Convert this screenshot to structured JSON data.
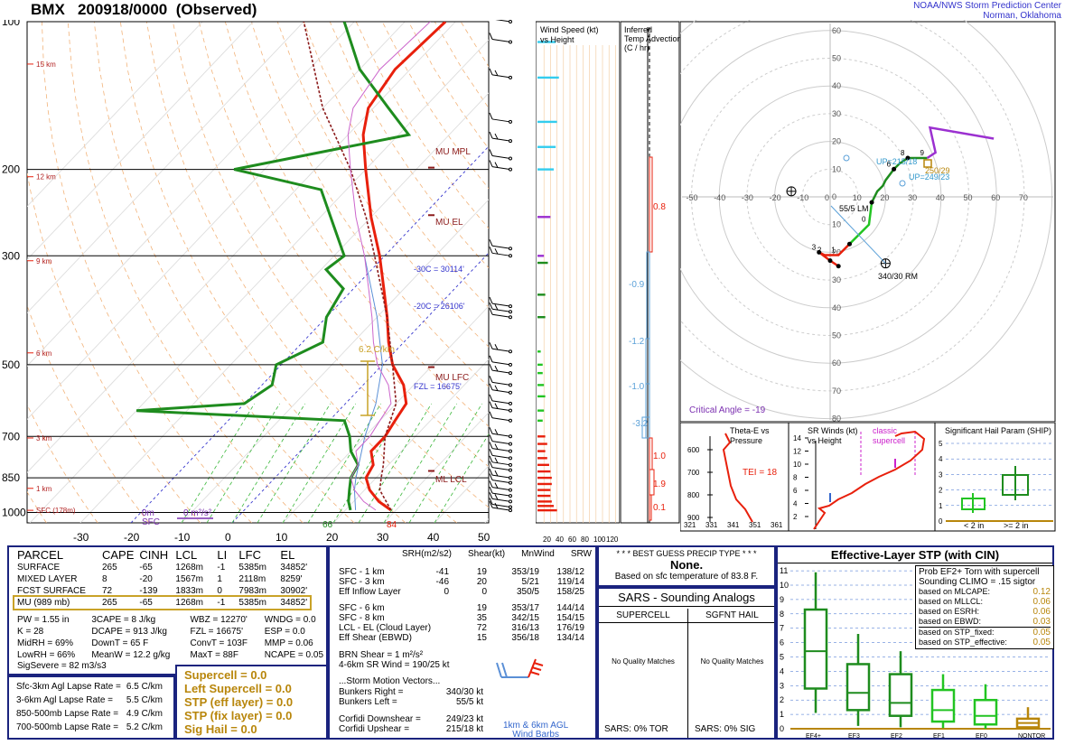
{
  "header": {
    "station": "BMX",
    "datetime": "200918/0000",
    "status": "(Observed)",
    "org_line1": "NOAA/NWS Storm Prediction Center",
    "org_line2": "Norman, Oklahoma"
  },
  "chart_data": [
    {
      "type": "line",
      "name_ref": "skewt",
      "pressure_levels": [
        100,
        200,
        300,
        500,
        700,
        850,
        1000
      ],
      "temp_ticks": [
        -30,
        -20,
        -10,
        0,
        10,
        20,
        30,
        40,
        50
      ],
      "height_labels": [
        "15 km",
        "12 km",
        "9 km",
        "6 km",
        "3 km",
        "1 km",
        "SFC (178m)"
      ],
      "height_pressures": [
        122,
        207,
        307,
        473,
        705,
        893,
        990
      ],
      "series": [
        {
          "kind": "temperature",
          "color": "#e8200c",
          "p": [
            989,
            950,
            900,
            850,
            800,
            750,
            700,
            650,
            600,
            550,
            500,
            450,
            400,
            350,
            300,
            250,
            200,
            170,
            150,
            125,
            100
          ],
          "t": [
            29,
            25,
            21,
            18,
            17,
            14,
            14,
            13,
            12,
            8,
            2,
            -3,
            -8,
            -14,
            -21,
            -30,
            -40,
            -47,
            -51,
            -53,
            -52
          ]
        },
        {
          "kind": "dewpoint",
          "color": "#1e8c1e",
          "p": [
            989,
            950,
            900,
            850,
            800,
            750,
            700,
            650,
            620,
            600,
            550,
            500,
            450,
            400,
            350,
            320,
            300,
            250,
            220,
            200,
            170,
            150,
            125,
            100
          ],
          "t": [
            21,
            19,
            17,
            15,
            14,
            10,
            7,
            3,
            -40,
            -20,
            -18,
            -21,
            -16,
            -20,
            -22,
            -29,
            -28,
            -38,
            -45,
            -66,
            -38,
            -47,
            -60,
            -72
          ]
        },
        {
          "kind": "parcel",
          "color": "#8b1a1a",
          "p": [
            989,
            900,
            850,
            800,
            700,
            600,
            500,
            400,
            300,
            250,
            200,
            150,
            100
          ],
          "t": [
            29,
            23,
            21,
            19,
            14,
            10,
            2,
            -8,
            -22,
            -31,
            -43,
            -60,
            -80
          ]
        },
        {
          "kind": "virtual",
          "color": "#5a8fd6",
          "p": [
            989,
            900,
            850,
            700,
            600,
            500,
            400,
            300
          ],
          "t": [
            22,
            18,
            16,
            10,
            6,
            0,
            -10,
            -24
          ]
        }
      ],
      "labels": {
        "mu_mpl": "MU MPL",
        "mu_el": "MU EL",
        "mu_lfc": "MU LFC",
        "ml_lcl": "ML LCL",
        "minus30": "-30C = 30114'",
        "minus20": "-20C = 26106'",
        "fzl": "FZL = 16675'",
        "lapse": "6.2 C/km",
        "sfc_t": "84",
        "sfc_td": "66",
        "mflux_a": "0m",
        "mflux_b": "SFC",
        "mflux_c": "0 m²/s²"
      }
    },
    {
      "type": "bar",
      "name_ref": "wind-speed",
      "title1": "Wind Speed (kt)",
      "title2": "vs Height",
      "xticks": [
        "20",
        "40",
        "60",
        "80",
        "100",
        "120"
      ],
      "pressures": [
        990,
        970,
        950,
        925,
        900,
        875,
        850,
        825,
        800,
        775,
        750,
        725,
        700,
        650,
        620,
        580,
        550,
        520,
        500,
        470,
        400,
        360,
        310,
        300,
        250,
        200,
        180,
        160,
        130,
        110
      ],
      "speeds": [
        30,
        25,
        22,
        20,
        20,
        22,
        22,
        20,
        18,
        15,
        12,
        15,
        12,
        8,
        10,
        12,
        10,
        8,
        8,
        5,
        12,
        12,
        16,
        10,
        20,
        25,
        28,
        30,
        33,
        28
      ],
      "colors": [
        "#e8200c",
        "#e8200c",
        "#e8200c",
        "#e8200c",
        "#e8200c",
        "#e8200c",
        "#e8200c",
        "#e8200c",
        "#e8200c",
        "#e8200c",
        "#e8200c",
        "#e8200c",
        "#e8200c",
        "#22c422",
        "#22c422",
        "#22c422",
        "#22c422",
        "#22c422",
        "#22c422",
        "#22c422",
        "#1e8c1e",
        "#1e8c1e",
        "#1e8c1e",
        "#9b30d0",
        "#9b30d0",
        "#33ccee",
        "#33ccee",
        "#33ccee",
        "#33ccee",
        "#33ccee"
      ]
    },
    {
      "type": "bar",
      "name_ref": "temp-advection",
      "title1": "Inferred",
      "title2": "Temp Advection",
      "title3": "(C / hr)",
      "values": [
        "0.8",
        "-0.9",
        "-1.2",
        "-1.0",
        "-3.2",
        "1.0",
        "1.9",
        "0.1"
      ]
    },
    {
      "type": "line",
      "name_ref": "hodograph",
      "rings": [
        10,
        20,
        30,
        40,
        50,
        60,
        70,
        80
      ],
      "axis_ticks": [
        "-60",
        "-50",
        "-40",
        "-30",
        "-20",
        "-10",
        "0",
        "10",
        "20",
        "30",
        "40",
        "50",
        "60",
        "70"
      ],
      "vaxis_ticks": [
        "60",
        "50",
        "40",
        "30",
        "20",
        "10",
        "0",
        "10",
        "20",
        "30",
        "40",
        "50",
        "60",
        "70",
        "80"
      ],
      "hodo_u": [
        3,
        0,
        -4,
        -2,
        3,
        7,
        10,
        14,
        15,
        17,
        19,
        20,
        23,
        25,
        28,
        35,
        38,
        36,
        59
      ],
      "hodo_v": [
        25,
        23,
        20,
        21,
        21,
        17,
        14,
        10,
        2,
        -2,
        -4,
        -6,
        -10,
        -12,
        -14,
        -14,
        -16,
        -25,
        -21
      ],
      "labels": {
        "lm": "55/5 LM",
        "rm": "340/30 RM",
        "up1": "UP=215/18",
        "up2": "UP=249/23",
        "mean": "250/29",
        "crit": "Critical Angle = -19",
        "marks": [
          "3",
          "2",
          "1",
          "0",
          "6",
          "8",
          "9"
        ]
      }
    },
    {
      "type": "line",
      "name_ref": "thetae",
      "title1": "Theta-E vs",
      "title2": "Pressure",
      "tei": "TEI = 18",
      "yticks": [
        "600",
        "700",
        "800",
        "900"
      ],
      "xticks": [
        "321",
        "331",
        "341",
        "351",
        "361"
      ]
    },
    {
      "type": "line",
      "name_ref": "sr-winds",
      "title1": "SR Winds (kt)",
      "title2": "vs Height",
      "classic": "classic",
      "supercell": "supercell",
      "yticks": [
        "14",
        "12",
        "10",
        "8",
        "6",
        "4",
        "2"
      ]
    },
    {
      "type": "bar",
      "name_ref": "ship",
      "title": "Significant Hail Param (SHIP)",
      "yticks": [
        "5",
        "4",
        "3",
        "2",
        "1",
        "0"
      ],
      "cat1": "< 2 in",
      "cat2": ">= 2 in"
    },
    {
      "type": "bar",
      "name_ref": "stp-box",
      "title": "Effective-Layer STP (with CIN)",
      "categories": [
        "EF4+",
        "EF3",
        "EF2",
        "EF1",
        "EF0",
        "NONTOR"
      ],
      "yticks": [
        "11",
        "10",
        "9",
        "8",
        "7",
        "6",
        "5",
        "4",
        "3",
        "2",
        "1",
        "0"
      ]
    }
  ],
  "parcel": {
    "headers": [
      "PARCEL",
      "CAPE",
      "CINH",
      "LCL",
      "LI",
      "LFC",
      "EL"
    ],
    "rows": [
      [
        "SURFACE",
        "265",
        "-65",
        "1268m",
        "-1",
        "5385m",
        "34852'"
      ],
      [
        "MIXED LAYER",
        "8",
        "-20",
        "1567m",
        "1",
        "2118m",
        "8259'"
      ],
      [
        "FCST SURFACE",
        "72",
        "-139",
        "1833m",
        "0",
        "7983m",
        "30902'"
      ],
      [
        "MU  (989 mb)",
        "265",
        "-65",
        "1268m",
        "-1",
        "5385m",
        "34852'"
      ]
    ],
    "indices": [
      [
        "PW = 1.55 in",
        "3CAPE = 8 J/kg",
        "WBZ = 12270'",
        "WNDG = 0.0"
      ],
      [
        "K = 28",
        "DCAPE = 913 J/kg",
        "FZL = 16675'",
        "ESP = 0.0"
      ],
      [
        "MidRH = 69%",
        "DownT = 65 F",
        "ConvT = 103F",
        "MMP = 0.06"
      ],
      [
        "LowRH = 66%",
        "MeanW = 12.2 g/kg",
        "MaxT = 88F",
        "NCAPE = 0.05"
      ]
    ],
    "sigsevere": "SigSevere = 82 m3/s3",
    "lapse": [
      [
        "Sfc-3km Agl Lapse Rate =",
        "6.5 C/km"
      ],
      [
        "3-6km Agl Lapse Rate =",
        "5.5 C/km"
      ],
      [
        "850-500mb Lapse Rate =",
        "4.9 C/km"
      ],
      [
        "700-500mb Lapse Rate =",
        "5.2 C/km"
      ]
    ],
    "params": [
      "Supercell = 0.0",
      "Left Supercell = 0.0",
      "STP (eff layer) = 0.0",
      "STP (fix layer) = 0.0",
      "Sig Hail = 0.0"
    ]
  },
  "kinematics": {
    "headers": [
      "SRH(m2/s2)",
      "Shear(kt)",
      "MnWind",
      "SRW"
    ],
    "rows1": [
      [
        "SFC - 1 km",
        "-41",
        "19",
        "353/19",
        "138/12"
      ],
      [
        "SFC - 3 km",
        "-46",
        "20",
        "5/21",
        "119/14"
      ],
      [
        "Eff Inflow Layer",
        "0",
        "0",
        "350/5",
        "158/25"
      ]
    ],
    "rows2": [
      [
        "SFC - 6 km",
        "",
        "19",
        "353/17",
        "144/14"
      ],
      [
        "SFC - 8 km",
        "",
        "35",
        "342/15",
        "154/15"
      ],
      [
        "LCL - EL (Cloud Layer)",
        "",
        "72",
        "316/13",
        "176/19"
      ],
      [
        "Eff Shear (EBWD)",
        "",
        "15",
        "356/18",
        "134/14"
      ]
    ],
    "brn": [
      "BRN Shear = 1 m²/s²",
      "4-6km SR Wind =   190/25 kt"
    ],
    "storm_title": "...Storm Motion Vectors...",
    "storm": [
      [
        "Bunkers Right =",
        "340/30 kt"
      ],
      [
        "Bunkers Left =",
        "55/5 kt"
      ],
      [
        "Corfidi Downshear =",
        "249/23 kt"
      ],
      [
        "Corfidi Upshear =",
        "215/18 kt"
      ]
    ],
    "barb_label1": "1km & 6km AGL",
    "barb_label2": "Wind Barbs"
  },
  "precip": {
    "title": "* * * BEST GUESS PRECIP TYPE * * *",
    "value": "None.",
    "note": "Based on sfc temperature of 83.8 F."
  },
  "sars": {
    "title": "SARS - Sounding Analogs",
    "col1": "SUPERCELL",
    "col2": "SGFNT HAIL",
    "match1": "No Quality Matches",
    "match2": "No Quality Matches",
    "foot1": "SARS:  0% TOR",
    "foot2": "SARS:  0% SIG"
  },
  "stp": {
    "prob1": "Prob EF2+ Torn with supercell",
    "prob2": "Sounding CLIMO = .15 sigtor",
    "items": [
      [
        "based on MLCAPE:",
        "0.12"
      ],
      [
        "based on MLLCL:",
        "0.06"
      ],
      [
        "based on ESRH:",
        "0.06"
      ],
      [
        "based on EBWD:",
        "0.03"
      ],
      [
        "based on STP_fixed:",
        "0.05"
      ],
      [
        "based on STP_effective:",
        "0.05"
      ]
    ]
  }
}
